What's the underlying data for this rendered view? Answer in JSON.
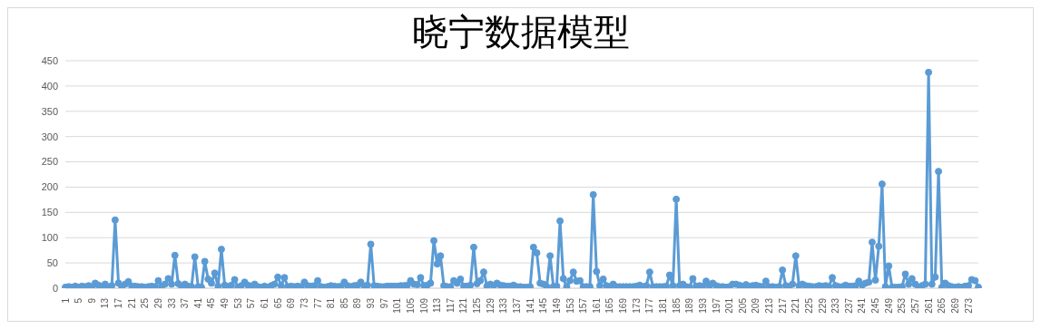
{
  "chart_data": {
    "type": "line",
    "title": "晓宁数据模型",
    "categories": [
      "1",
      null,
      null,
      null,
      "5",
      null,
      null,
      null,
      "9",
      null,
      null,
      null,
      "13",
      null,
      null,
      null,
      "17",
      null,
      null,
      null,
      "21",
      null,
      null,
      null,
      "25",
      null,
      null,
      null,
      "29",
      null,
      null,
      null,
      "33",
      null,
      null,
      null,
      "37",
      null,
      null,
      null,
      "41",
      null,
      null,
      null,
      "45",
      null,
      null,
      null,
      "49",
      null,
      null,
      null,
      "53",
      null,
      null,
      null,
      "57",
      null,
      null,
      null,
      "61",
      null,
      null,
      null,
      "65",
      null,
      null,
      null,
      "69",
      null,
      null,
      null,
      "73",
      null,
      null,
      null,
      "77",
      null,
      null,
      null,
      "81",
      null,
      null,
      null,
      "85",
      null,
      null,
      null,
      "89",
      null,
      null,
      null,
      "93",
      null,
      null,
      null,
      "97",
      null,
      null,
      null,
      "101",
      null,
      null,
      null,
      "105",
      null,
      null,
      null,
      "109",
      null,
      null,
      null,
      "113",
      null,
      null,
      null,
      "117",
      null,
      null,
      null,
      "121",
      null,
      null,
      null,
      "125",
      null,
      null,
      null,
      "129",
      null,
      null,
      null,
      "133",
      null,
      null,
      null,
      "137",
      null,
      null,
      null,
      "141",
      null,
      null,
      null,
      "145",
      null,
      null,
      null,
      "149",
      null,
      null,
      null,
      "153",
      null,
      null,
      null,
      "157",
      null,
      null,
      null,
      "161",
      null,
      null,
      null,
      "165",
      null,
      null,
      null,
      "169",
      null,
      null,
      null,
      "173",
      null,
      null,
      null,
      "177",
      null,
      null,
      null,
      "181",
      null,
      null,
      null,
      "185",
      null,
      null,
      null,
      "189",
      null,
      null,
      null,
      "193",
      null,
      null,
      null,
      "197",
      null,
      null,
      null,
      "201",
      null,
      null,
      null,
      "205",
      null,
      null,
      null,
      "209",
      null,
      null,
      null,
      "213",
      null,
      null,
      null,
      "217",
      null,
      null,
      null,
      "221",
      null,
      null,
      null,
      "225",
      null,
      null,
      null,
      "229",
      null,
      null,
      null,
      "233",
      null,
      null,
      null,
      "237",
      null,
      null,
      null,
      "241",
      null,
      null,
      null,
      "245",
      null,
      null,
      null,
      "249",
      null,
      null,
      null,
      "253",
      null,
      null,
      null,
      "257",
      null,
      null,
      null,
      "261",
      null,
      null,
      null,
      "265",
      null,
      null,
      null,
      "269",
      null,
      null,
      null,
      "273",
      null,
      null,
      null
    ],
    "series": [
      {
        "color": "#5b9bd5",
        "values": [
          2,
          3,
          2,
          4,
          2,
          4,
          3,
          5,
          3,
          10,
          6,
          3,
          8,
          2,
          5,
          135,
          10,
          3,
          8,
          13,
          4,
          4,
          3,
          3,
          2,
          3,
          4,
          3,
          15,
          4,
          8,
          19,
          8,
          65,
          9,
          3,
          8,
          4,
          3,
          62,
          3,
          2,
          53,
          18,
          10,
          30,
          4,
          77,
          6,
          3,
          6,
          17,
          2,
          5,
          12,
          6,
          4,
          8,
          3,
          2,
          4,
          2,
          5,
          8,
          22,
          5,
          21,
          3,
          4,
          3,
          4,
          3,
          12,
          5,
          4,
          5,
          15,
          3,
          2,
          3,
          5,
          4,
          3,
          4,
          12,
          5,
          3,
          5,
          6,
          12,
          4,
          6,
          87,
          5,
          4,
          3,
          3,
          4,
          4,
          4,
          4,
          5,
          5,
          6,
          15,
          8,
          7,
          21,
          5,
          6,
          10,
          94,
          48,
          64,
          5,
          3,
          3,
          15,
          10,
          18,
          4,
          4,
          6,
          81,
          9,
          15,
          32,
          4,
          8,
          5,
          10,
          6,
          5,
          4,
          4,
          6,
          3,
          3,
          2,
          2,
          3,
          81,
          70,
          10,
          8,
          3,
          64,
          3,
          4,
          133,
          19,
          3,
          15,
          32,
          14,
          15,
          3,
          3,
          3,
          185,
          33,
          5,
          18,
          5,
          3,
          8,
          3,
          3,
          3,
          3,
          3,
          3,
          4,
          6,
          3,
          5,
          32,
          3,
          3,
          3,
          3,
          4,
          26,
          5,
          176,
          5,
          8,
          3,
          2,
          19,
          4,
          5,
          4,
          14,
          5,
          10,
          5,
          3,
          3,
          2,
          3,
          8,
          8,
          6,
          4,
          7,
          4,
          5,
          6,
          4,
          3,
          14,
          3,
          3,
          2,
          3,
          36,
          5,
          3,
          8,
          64,
          5,
          8,
          5,
          4,
          3,
          3,
          5,
          4,
          5,
          3,
          21,
          5,
          3,
          3,
          6,
          4,
          4,
          5,
          14,
          6,
          10,
          12,
          91,
          16,
          83,
          206,
          3,
          44,
          2,
          2,
          2,
          3,
          28,
          8,
          19,
          8,
          2,
          5,
          8,
          427,
          8,
          22,
          231,
          2,
          10,
          5,
          3,
          2,
          3,
          2,
          4,
          5,
          17,
          15,
          2
        ]
      }
    ],
    "ylim": [
      0,
      450
    ],
    "yticks": [
      0,
      50,
      100,
      150,
      200,
      250,
      300,
      350,
      400,
      450
    ],
    "grid": "y",
    "marker": "circle",
    "line_style": "solid"
  }
}
